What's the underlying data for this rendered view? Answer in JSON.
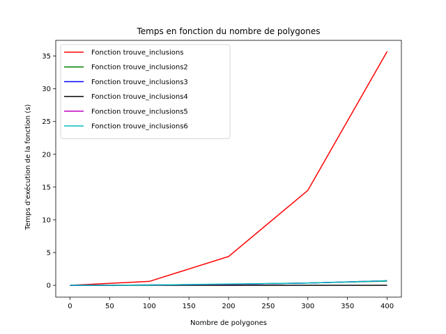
{
  "chart_data": {
    "type": "line",
    "title": "Temps en fonction du nombre de polygones",
    "xlabel": "Nombre de polygones",
    "ylabel": "Temps d'exécution de la fonction (s)",
    "xlim": [
      -18,
      418
    ],
    "ylim": [
      -1.8,
      37.4
    ],
    "xticks": [
      0,
      50,
      100,
      150,
      200,
      250,
      300,
      350,
      400
    ],
    "yticks": [
      0,
      5,
      10,
      15,
      20,
      25,
      30,
      35
    ],
    "grid": false,
    "legend_position": "top-left",
    "series": [
      {
        "name": "Fonction trouve_inclusions",
        "color": "#ff0000",
        "x": [
          0,
          100,
          200,
          300,
          400
        ],
        "y": [
          0.0,
          0.6,
          4.4,
          14.5,
          35.7
        ]
      },
      {
        "name": "Fonction trouve_inclusions2",
        "color": "#008000",
        "x": [
          0,
          100,
          200,
          300,
          400
        ],
        "y": [
          0.0,
          0.05,
          0.15,
          0.35,
          0.65
        ]
      },
      {
        "name": "Fonction trouve_inclusions3",
        "color": "#0000ff",
        "x": [
          0,
          100,
          200,
          300,
          400
        ],
        "y": [
          0.0,
          0.05,
          0.15,
          0.35,
          0.7
        ]
      },
      {
        "name": "Fonction trouve_inclusions4",
        "color": "#000000",
        "x": [
          0,
          100,
          200,
          300,
          400
        ],
        "y": [
          0.0,
          0.0,
          0.0,
          0.0,
          0.0
        ]
      },
      {
        "name": "Fonction trouve_inclusions5",
        "color": "#bf00bf",
        "x": [
          0,
          100,
          200,
          300,
          400
        ],
        "y": [
          0.0,
          0.05,
          0.15,
          0.35,
          0.7
        ]
      },
      {
        "name": "Fonction trouve_inclusions6",
        "color": "#00bfbf",
        "x": [
          0,
          100,
          200,
          300,
          400
        ],
        "y": [
          0.0,
          0.05,
          0.2,
          0.35,
          0.7
        ]
      }
    ]
  }
}
